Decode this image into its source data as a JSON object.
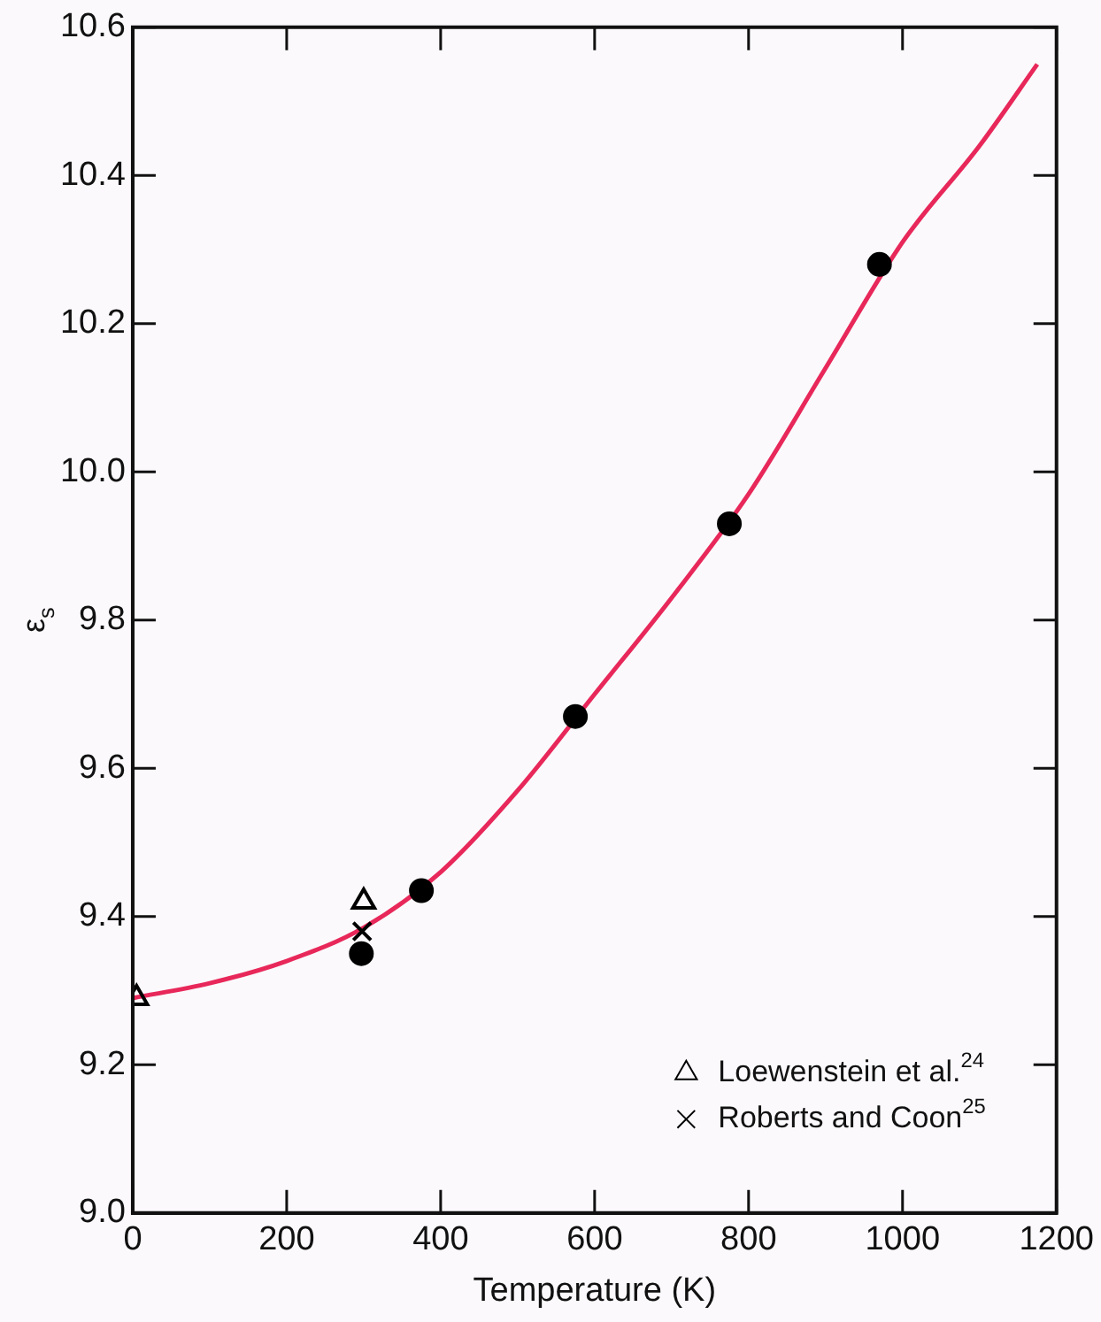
{
  "chart_data": {
    "type": "scatter",
    "xlabel": "Temperature (K)",
    "ylabel": "ε$_{s}$",
    "xlim": [
      0,
      1200
    ],
    "xticks": [
      0,
      200,
      400,
      600,
      800,
      1000,
      1200
    ],
    "ylim": [
      9.0,
      10.6
    ],
    "yticks": [
      {
        "value": 9,
        "label": "9.0"
      },
      9.2,
      9.4,
      9.6,
      9.8,
      {
        "value": 10,
        "label": "10.0"
      },
      10.2,
      10.4,
      10.6
    ],
    "grid": false,
    "legend": "bottom right",
    "series": [
      {
        "name": "Loewenstein et al.$^{24}$",
        "color": "#000000",
        "marker": "triangle",
        "x": [
          5,
          300
        ],
        "values": [
          9.29,
          9.42
        ]
      },
      {
        "name": "Roberts and Coon$^{25}$",
        "color": "#000000",
        "marker": "cross",
        "x": [
          298
        ],
        "values": [
          9.38
        ]
      },
      {
        "color": "#000000",
        "marker": "circle",
        "x": [
          297,
          375,
          575,
          775,
          970
        ],
        "values": [
          9.35,
          9.435,
          9.67,
          9.93,
          10.28
        ]
      },
      {
        "type": "line",
        "color": "#e8285a",
        "marker": "none",
        "x": [
          0,
          100,
          200,
          300,
          400,
          500,
          600,
          700,
          800,
          900,
          1000,
          1100,
          1175
        ],
        "values": [
          9.29,
          9.31,
          9.34,
          9.385,
          9.46,
          9.57,
          9.7,
          9.83,
          9.97,
          10.14,
          10.31,
          10.44,
          10.55
        ]
      }
    ]
  }
}
